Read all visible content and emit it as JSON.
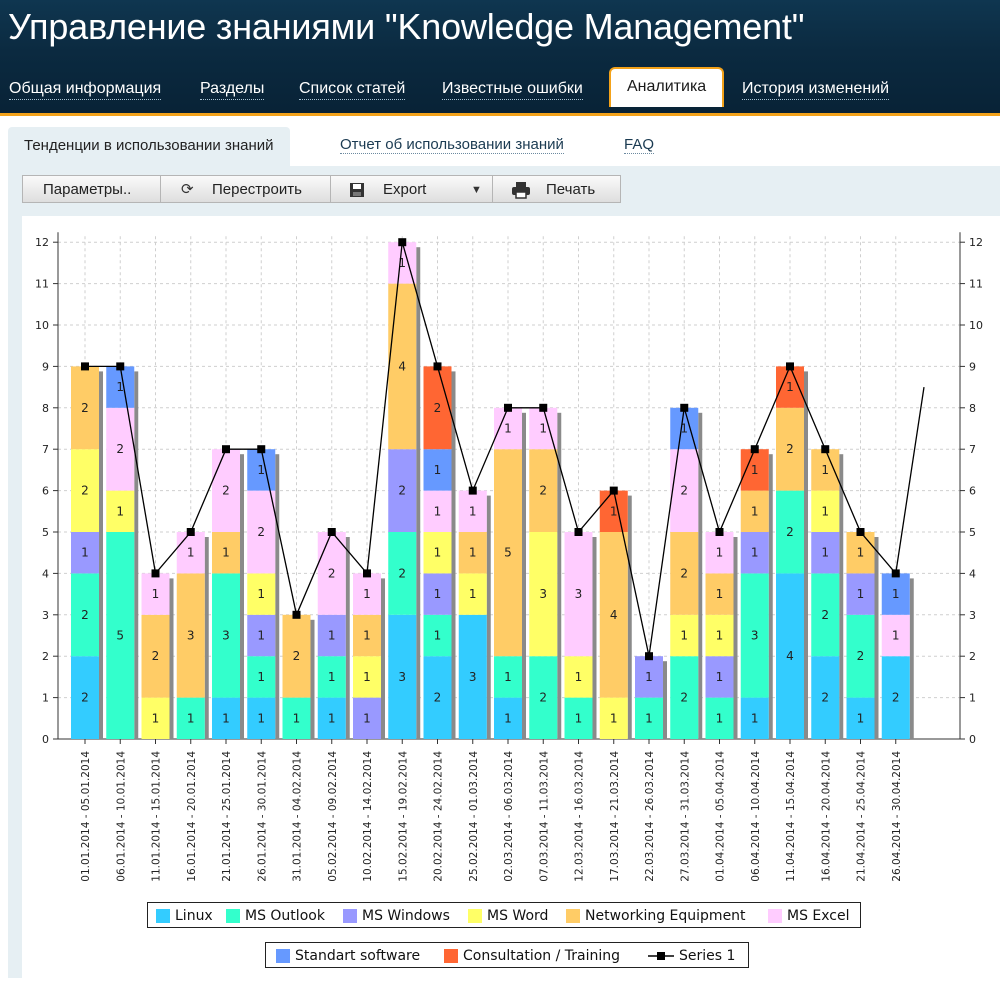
{
  "app": {
    "title": "Управление знаниями \"Knowledge Management\""
  },
  "nav": {
    "tabs": [
      {
        "label": "Общая информация"
      },
      {
        "label": "Разделы"
      },
      {
        "label": "Список статей"
      },
      {
        "label": "Известные ошибки"
      },
      {
        "label": "Аналитика",
        "active": true
      },
      {
        "label": "История изменений"
      }
    ]
  },
  "subtabs": {
    "items": [
      {
        "label": "Тенденции в использовании знаний",
        "active": true
      },
      {
        "label": "Отчет об использовании знаний"
      },
      {
        "label": "FAQ"
      }
    ]
  },
  "toolbar": {
    "params_label": "Параметры..",
    "rebuild_label": "Перестроить",
    "export_label": "Export",
    "print_label": "Печать"
  },
  "chart_data": {
    "type": "bar",
    "stacked": true,
    "ylim": [
      0,
      12
    ],
    "yticks": [
      0,
      1,
      2,
      3,
      4,
      5,
      6,
      7,
      8,
      9,
      10,
      11,
      12
    ],
    "grid": true,
    "categories": [
      "01.01.2014 - 05.01.2014",
      "06.01.2014 - 10.01.2014",
      "11.01.2014 - 15.01.2014",
      "16.01.2014 - 20.01.2014",
      "21.01.2014 - 25.01.2014",
      "26.01.2014 - 30.01.2014",
      "31.01.2014 - 04.02.2014",
      "05.02.2014 - 09.02.2014",
      "10.02.2014 - 14.02.2014",
      "15.02.2014 - 19.02.2014",
      "20.02.2014 - 24.02.2014",
      "25.02.2014 - 01.03.2014",
      "02.03.2014 - 06.03.2014",
      "07.03.2014 - 11.03.2014",
      "12.03.2014 - 16.03.2014",
      "17.03.2014 - 21.03.2014",
      "22.03.2014 - 26.03.2014",
      "27.03.2014 - 31.03.2014",
      "01.04.2014 - 05.04.2014",
      "06.04.2014 - 10.04.2014",
      "11.04.2014 - 15.04.2014",
      "16.04.2014 - 20.04.2014",
      "21.04.2014 - 25.04.2014",
      "26.04.2014 - 30.04.2014"
    ],
    "series": [
      {
        "name": "Linux",
        "color": "#33ccff",
        "values": [
          2,
          0,
          0,
          0,
          1,
          1,
          0,
          1,
          0,
          3,
          2,
          3,
          1,
          0,
          0,
          0,
          0,
          0,
          0,
          1,
          4,
          2,
          1,
          2
        ]
      },
      {
        "name": "MS Outlook",
        "color": "#33ffcc",
        "values": [
          2,
          5,
          0,
          1,
          3,
          1,
          1,
          1,
          0,
          2,
          1,
          0,
          1,
          2,
          1,
          0,
          1,
          2,
          1,
          3,
          2,
          2,
          2,
          0
        ]
      },
      {
        "name": "MS Windows",
        "color": "#9999ff",
        "values": [
          1,
          0,
          0,
          0,
          0,
          1,
          0,
          1,
          1,
          2,
          1,
          0,
          0,
          0,
          0,
          0,
          1,
          0,
          1,
          1,
          0,
          1,
          1,
          0
        ]
      },
      {
        "name": "MS Word",
        "color": "#ffff66",
        "values": [
          2,
          1,
          1,
          0,
          0,
          1,
          0,
          0,
          1,
          0,
          1,
          1,
          0,
          3,
          1,
          1,
          0,
          1,
          1,
          0,
          0,
          1,
          0,
          0
        ]
      },
      {
        "name": "Networking Equipment",
        "color": "#ffcc66",
        "values": [
          2,
          0,
          2,
          3,
          1,
          0,
          2,
          0,
          1,
          4,
          0,
          1,
          5,
          2,
          0,
          4,
          0,
          2,
          1,
          1,
          2,
          1,
          1,
          0
        ]
      },
      {
        "name": "MS Excel",
        "color": "#ffccff",
        "values": [
          0,
          2,
          1,
          1,
          2,
          2,
          0,
          2,
          1,
          1,
          1,
          1,
          1,
          1,
          3,
          0,
          0,
          2,
          1,
          0,
          0,
          0,
          0,
          1
        ]
      },
      {
        "name": "Standart software",
        "color": "#6699ff",
        "values": [
          0,
          1,
          0,
          0,
          0,
          1,
          0,
          0,
          0,
          0,
          1,
          0,
          0,
          0,
          0,
          0,
          0,
          1,
          0,
          0,
          0,
          0,
          0,
          1
        ]
      },
      {
        "name": "Consultation / Training",
        "color": "#ff6633",
        "values": [
          0,
          0,
          0,
          0,
          0,
          0,
          0,
          0,
          0,
          0,
          2,
          0,
          0,
          0,
          0,
          1,
          0,
          0,
          0,
          1,
          1,
          0,
          0,
          0
        ]
      },
      {
        "name": "Series 1",
        "color": "#000000",
        "type": "line",
        "values": [
          9,
          9,
          4,
          5,
          7,
          7,
          3,
          5,
          4,
          12,
          9,
          6,
          8,
          8,
          5,
          6,
          2,
          8,
          5,
          7,
          9,
          7,
          5,
          4
        ]
      }
    ]
  }
}
